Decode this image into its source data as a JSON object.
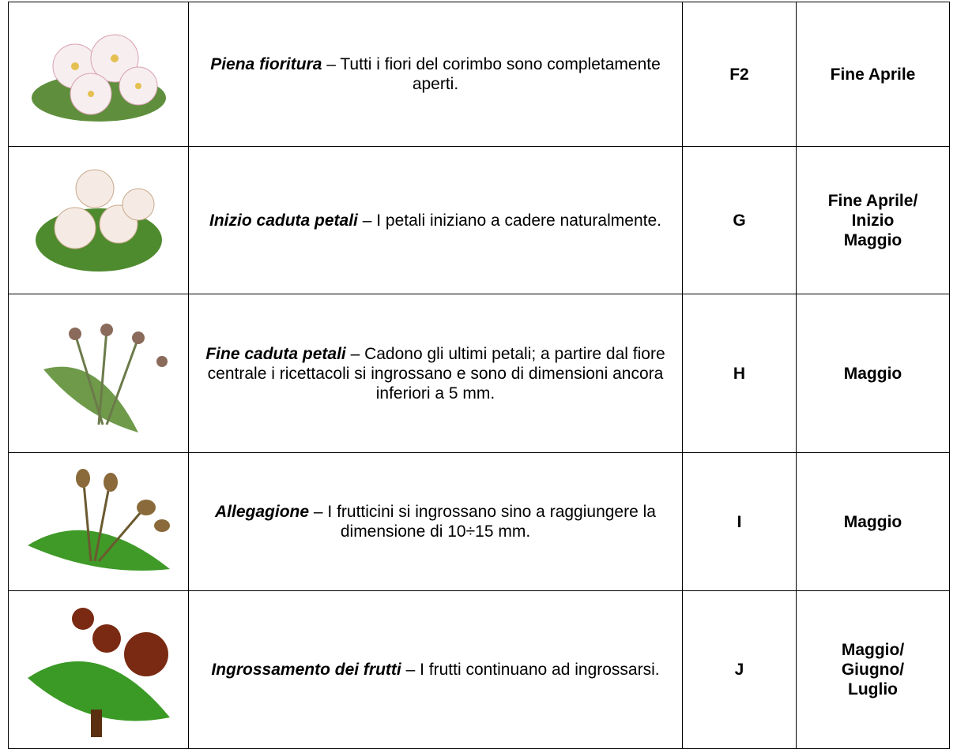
{
  "table": {
    "rows": [
      {
        "title": "Piena fioritura",
        "text": "– Tutti i fiori del corimbo sono completamente aperti.",
        "code": "F2",
        "period": [
          "Fine Aprile"
        ]
      },
      {
        "title": "Inizio caduta petali",
        "text": "– I petali iniziano a cadere naturalmente.",
        "code": "G",
        "period": [
          "Fine Aprile/",
          "Inizio",
          "Maggio"
        ]
      },
      {
        "title": "Fine caduta petali",
        "text": "– Cadono gli ultimi petali; a partire dal fiore centrale i ricettacoli si ingrossano e sono di dimensioni ancora inferiori a 5 mm.",
        "code": "H",
        "period": [
          "Maggio"
        ]
      },
      {
        "title": "Allegagione",
        "text": "– I frutticini si ingrossano sino a raggiungere la dimensione di 10÷15 mm.",
        "code": "I",
        "period": [
          "Maggio"
        ]
      },
      {
        "title": "Ingrossamento dei frutti",
        "text": "– I frutti continuano ad ingrossarsi.",
        "code": "J",
        "period": [
          "Maggio/",
          "Giugno/",
          "Luglio"
        ]
      }
    ]
  }
}
